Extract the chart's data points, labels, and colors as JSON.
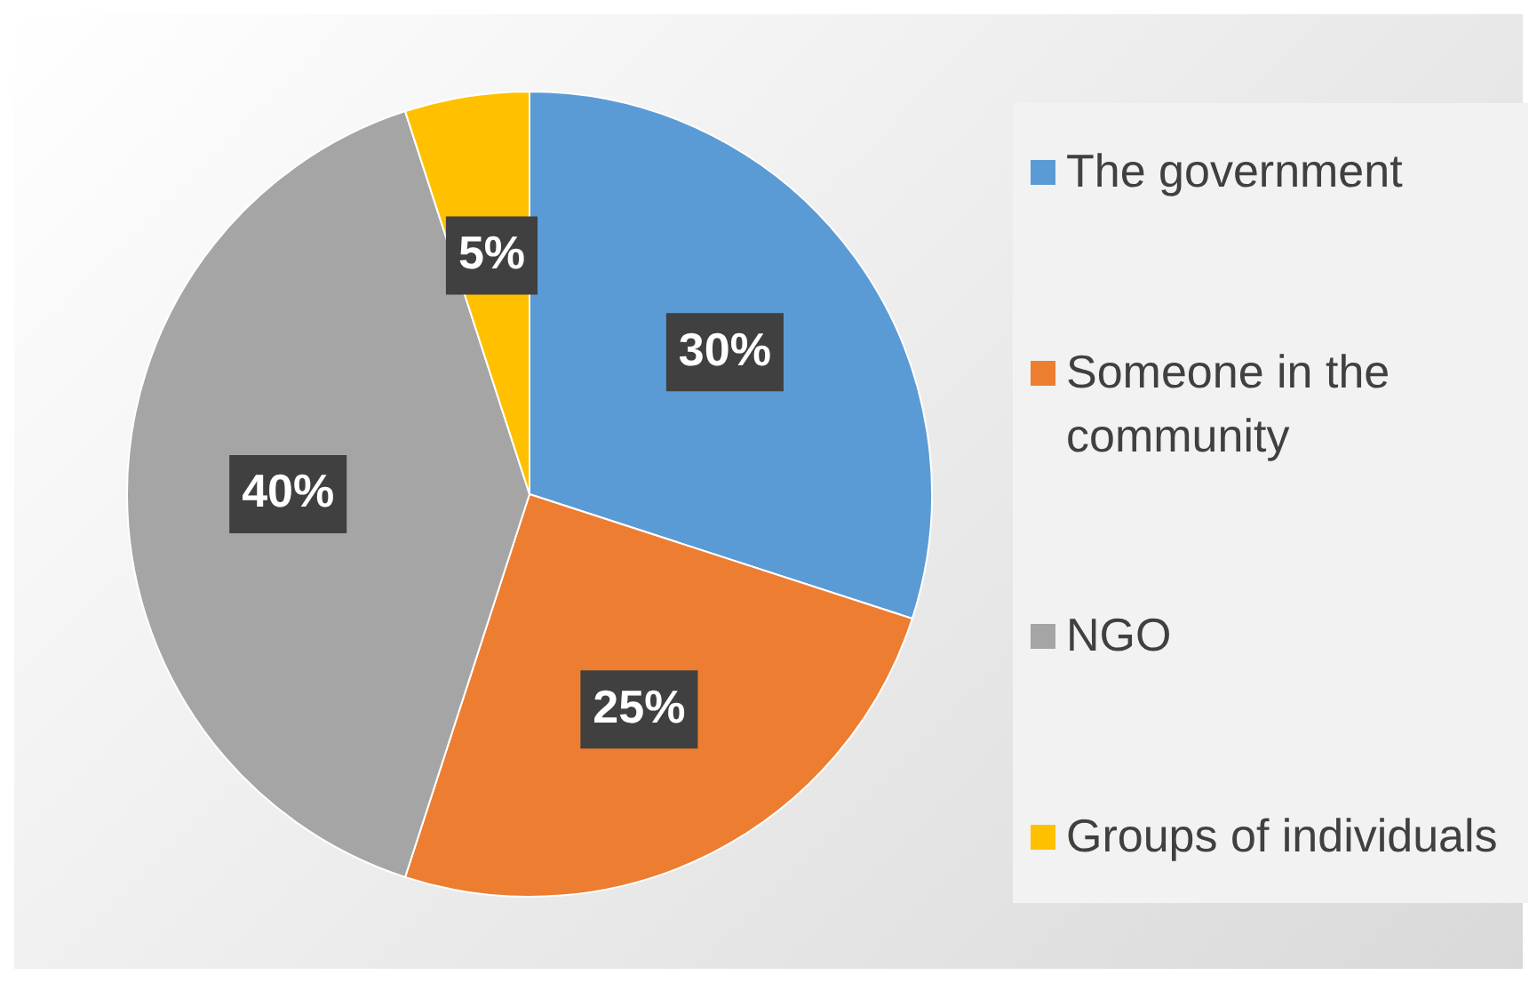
{
  "chart_data": {
    "type": "pie",
    "categories": [
      "The government",
      "Someone in the community",
      "NGO",
      "Groups of individuals"
    ],
    "values": [
      30,
      25,
      40,
      5
    ],
    "colors": [
      "#5b9bd5",
      "#ed7d31",
      "#a5a5a5",
      "#ffc000"
    ],
    "value_labels": [
      "30%",
      "25%",
      "40%",
      "5%"
    ],
    "legend": "right"
  }
}
